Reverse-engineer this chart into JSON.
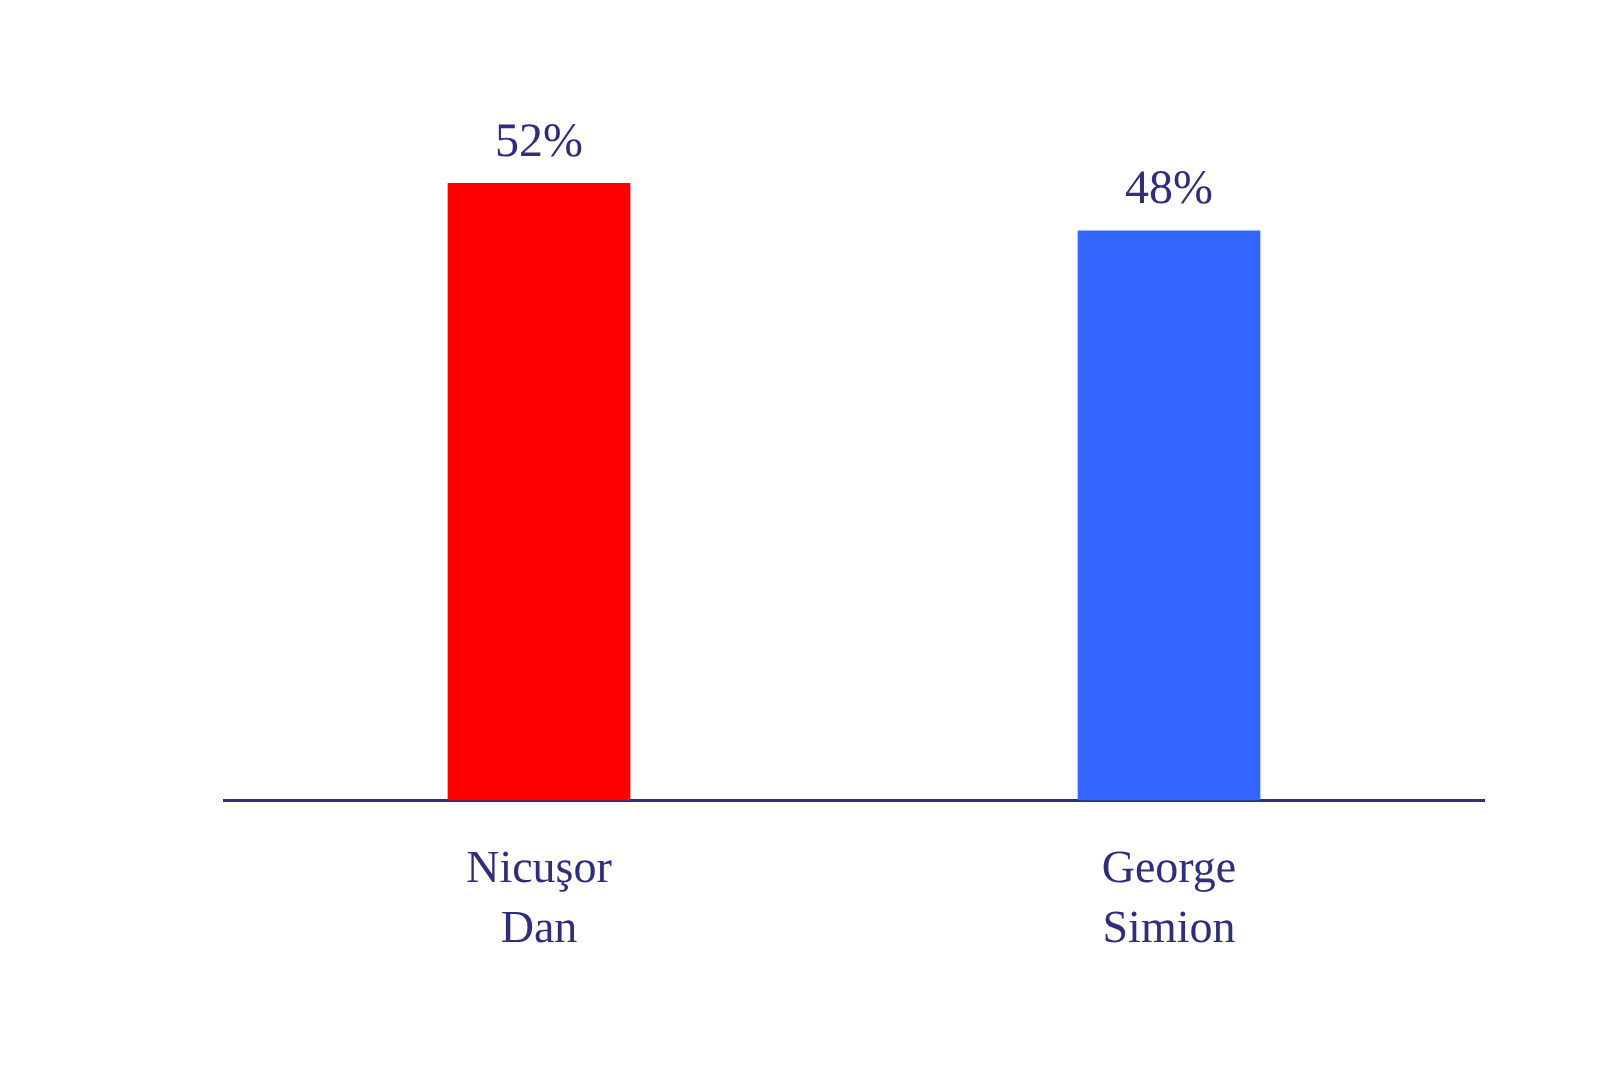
{
  "chart_data": {
    "type": "bar",
    "categories": [
      "Nicuşor Dan",
      "George Simion"
    ],
    "values": [
      52,
      48
    ],
    "colors": [
      "#ff0000",
      "#3366ff"
    ],
    "value_labels": [
      "52%",
      "48%"
    ],
    "grid": false,
    "legend": false,
    "tick_labels": "x"
  }
}
